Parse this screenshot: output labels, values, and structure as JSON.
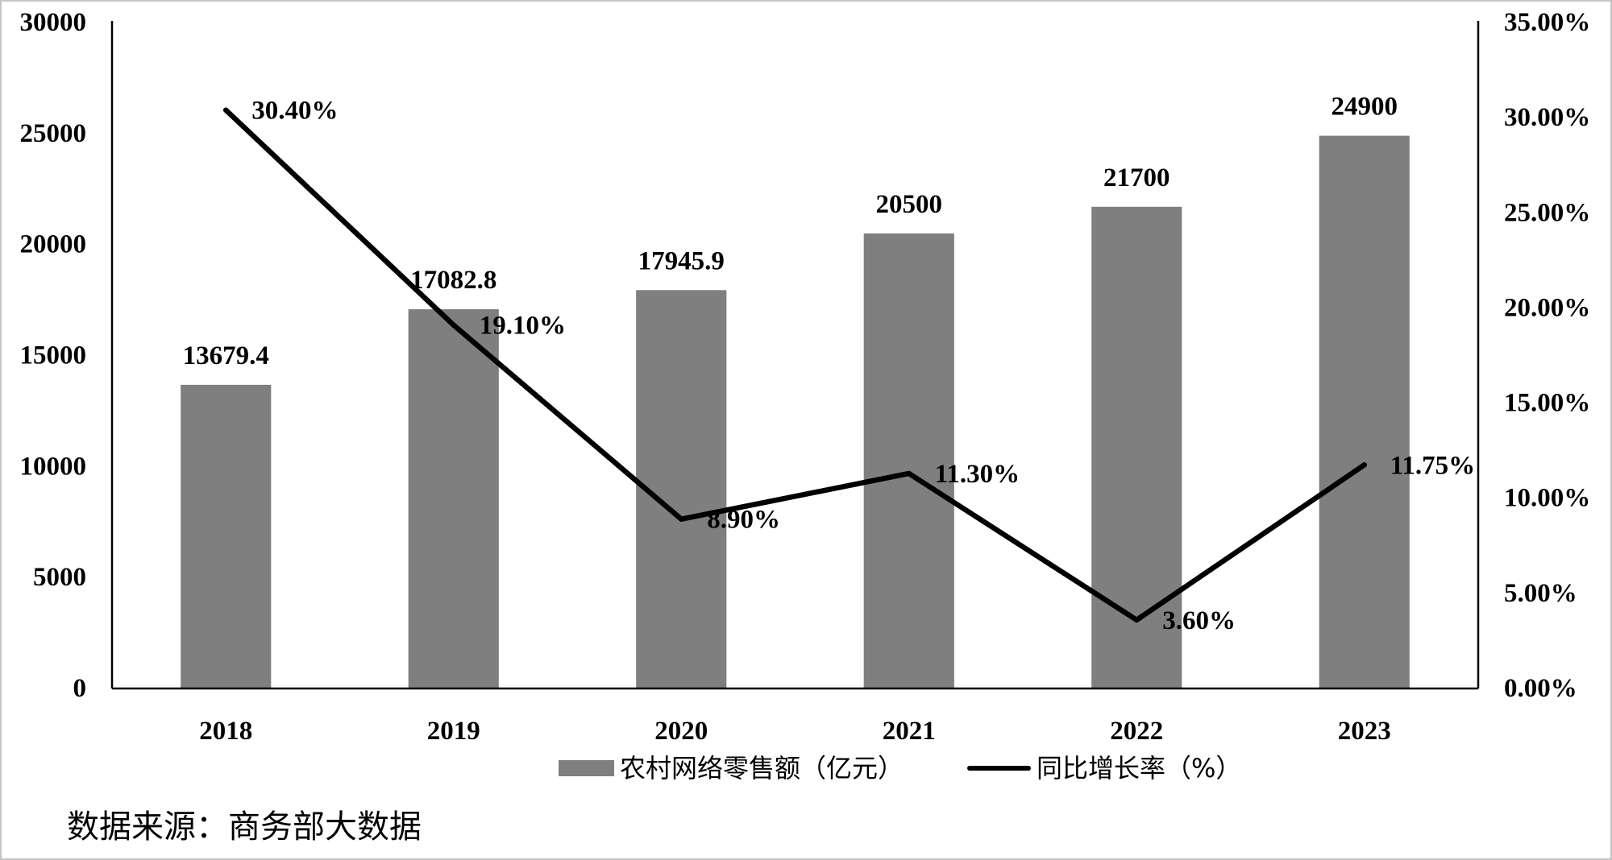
{
  "chart_data": {
    "type": "bar",
    "categories": [
      "2018",
      "2019",
      "2020",
      "2021",
      "2022",
      "2023"
    ],
    "series": [
      {
        "name": "农村网络零售额（亿元）",
        "type": "bar",
        "axis": "left",
        "color": "#7f7f7f",
        "values": [
          13679.4,
          17082.8,
          17945.9,
          20500,
          21700,
          24900
        ],
        "labels": [
          "13679.4",
          "17082.8",
          "17945.9",
          "20500",
          "21700",
          "24900"
        ]
      },
      {
        "name": "同比增长率（%）",
        "type": "line",
        "axis": "right",
        "color": "#000000",
        "values": [
          30.4,
          19.1,
          8.9,
          11.3,
          3.6,
          11.75
        ],
        "labels": [
          "30.40%",
          "19.10%",
          "8.90%",
          "11.30%",
          "3.60%",
          "11.75%"
        ]
      }
    ],
    "y_left": {
      "ylim": [
        0,
        30000
      ],
      "ticks": [
        0,
        5000,
        10000,
        15000,
        20000,
        25000,
        30000
      ],
      "tick_labels": [
        "0",
        "5000",
        "10000",
        "15000",
        "20000",
        "25000",
        "30000"
      ]
    },
    "y_right": {
      "ylim": [
        0,
        35
      ],
      "ticks": [
        0,
        5,
        10,
        15,
        20,
        25,
        30,
        35
      ],
      "tick_labels": [
        "0.00%",
        "5.00%",
        "10.00%",
        "15.00%",
        "20.00%",
        "25.00%",
        "30.00%",
        "35.00%"
      ]
    },
    "grid": false,
    "legend": "bottom"
  },
  "source_note": "数据来源：商务部大数据"
}
